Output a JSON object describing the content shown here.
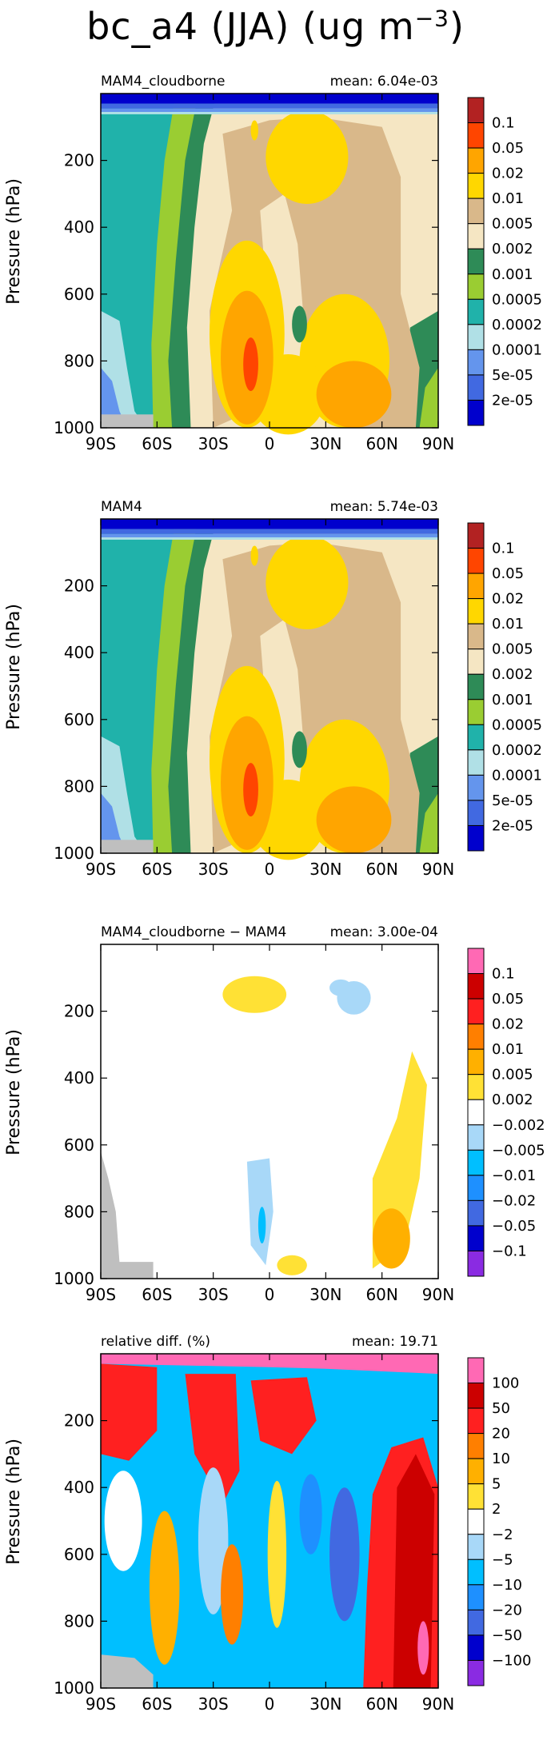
{
  "page_title": {
    "text": "bc_a4 (JJA) (ug m",
    "exponent": "−3",
    "close": ")"
  },
  "chart_data": [
    {
      "type": "heatmap",
      "title_left": "MAM4_cloudborne",
      "title_right": "mean: 6.04e-03",
      "ylabel": "Pressure (hPa)",
      "xlabel": "",
      "x_ticks": [
        "90S",
        "60S",
        "30S",
        "0",
        "30N",
        "60N",
        "90N"
      ],
      "y_ticks": [
        "200",
        "400",
        "600",
        "800",
        "1000"
      ],
      "xlim": [
        -90,
        90
      ],
      "ylim": [
        1000,
        0
      ],
      "colorbar_labels": [
        "0.1",
        "0.05",
        "0.02",
        "0.01",
        "0.005",
        "0.002",
        "0.001",
        "0.0005",
        "0.0002",
        "0.0001",
        "5e-05",
        "2e-05"
      ],
      "colorbar_colors": [
        "#b22222",
        "#ff4500",
        "#ffa500",
        "#ffd700",
        "#d9b88a",
        "#f5e6c3",
        "#2e8b57",
        "#9acd32",
        "#20b2aa",
        "#b0e0e6",
        "#6495ed",
        "#4169e1",
        "#0000cd"
      ],
      "mean": 0.00604
    },
    {
      "type": "heatmap",
      "title_left": "MAM4",
      "title_right": "mean: 5.74e-03",
      "ylabel": "Pressure (hPa)",
      "xlabel": "",
      "x_ticks": [
        "90S",
        "60S",
        "30S",
        "0",
        "30N",
        "60N",
        "90N"
      ],
      "y_ticks": [
        "200",
        "400",
        "600",
        "800",
        "1000"
      ],
      "xlim": [
        -90,
        90
      ],
      "ylim": [
        1000,
        0
      ],
      "colorbar_labels": [
        "0.1",
        "0.05",
        "0.02",
        "0.01",
        "0.005",
        "0.002",
        "0.001",
        "0.0005",
        "0.0002",
        "0.0001",
        "5e-05",
        "2e-05"
      ],
      "colorbar_colors": [
        "#b22222",
        "#ff4500",
        "#ffa500",
        "#ffd700",
        "#d9b88a",
        "#f5e6c3",
        "#2e8b57",
        "#9acd32",
        "#20b2aa",
        "#b0e0e6",
        "#6495ed",
        "#4169e1",
        "#0000cd"
      ],
      "mean": 0.00574
    },
    {
      "type": "heatmap",
      "title_left": "MAM4_cloudborne − MAM4",
      "title_right": "mean: 3.00e-04",
      "ylabel": "Pressure (hPa)",
      "xlabel": "",
      "x_ticks": [
        "90S",
        "60S",
        "30S",
        "0",
        "30N",
        "60N",
        "90N"
      ],
      "y_ticks": [
        "200",
        "400",
        "600",
        "800",
        "1000"
      ],
      "xlim": [
        -90,
        90
      ],
      "ylim": [
        1000,
        0
      ],
      "colorbar_labels": [
        "0.1",
        "0.05",
        "0.02",
        "0.01",
        "0.005",
        "0.002",
        "−0.002",
        "−0.005",
        "−0.01",
        "−0.02",
        "−0.05",
        "−0.1"
      ],
      "colorbar_colors": [
        "#ff69b4",
        "#cc0000",
        "#ff2020",
        "#ff7f00",
        "#ffb000",
        "#ffe135",
        "#ffffff",
        "#a8d8f8",
        "#00bfff",
        "#1e90ff",
        "#4169e1",
        "#0000cd",
        "#8a2be2"
      ],
      "mean": 0.0003
    },
    {
      "type": "heatmap",
      "title_left": "relative diff. (%)",
      "title_right": "mean: 19.71",
      "ylabel": "Pressure (hPa)",
      "xlabel": "",
      "x_ticks": [
        "90S",
        "60S",
        "30S",
        "0",
        "30N",
        "60N",
        "90N"
      ],
      "y_ticks": [
        "200",
        "400",
        "600",
        "800",
        "1000"
      ],
      "xlim": [
        -90,
        90
      ],
      "ylim": [
        1000,
        0
      ],
      "colorbar_labels": [
        "100",
        "50",
        "20",
        "10",
        "5",
        "2",
        "−2",
        "−5",
        "−10",
        "−20",
        "−50",
        "−100"
      ],
      "colorbar_colors": [
        "#ff69b4",
        "#cc0000",
        "#ff2020",
        "#ff7f00",
        "#ffb000",
        "#ffe135",
        "#ffffff",
        "#a8d8f8",
        "#00bfff",
        "#1e90ff",
        "#4169e1",
        "#0000cd",
        "#8a2be2"
      ],
      "mean": 19.71
    }
  ]
}
